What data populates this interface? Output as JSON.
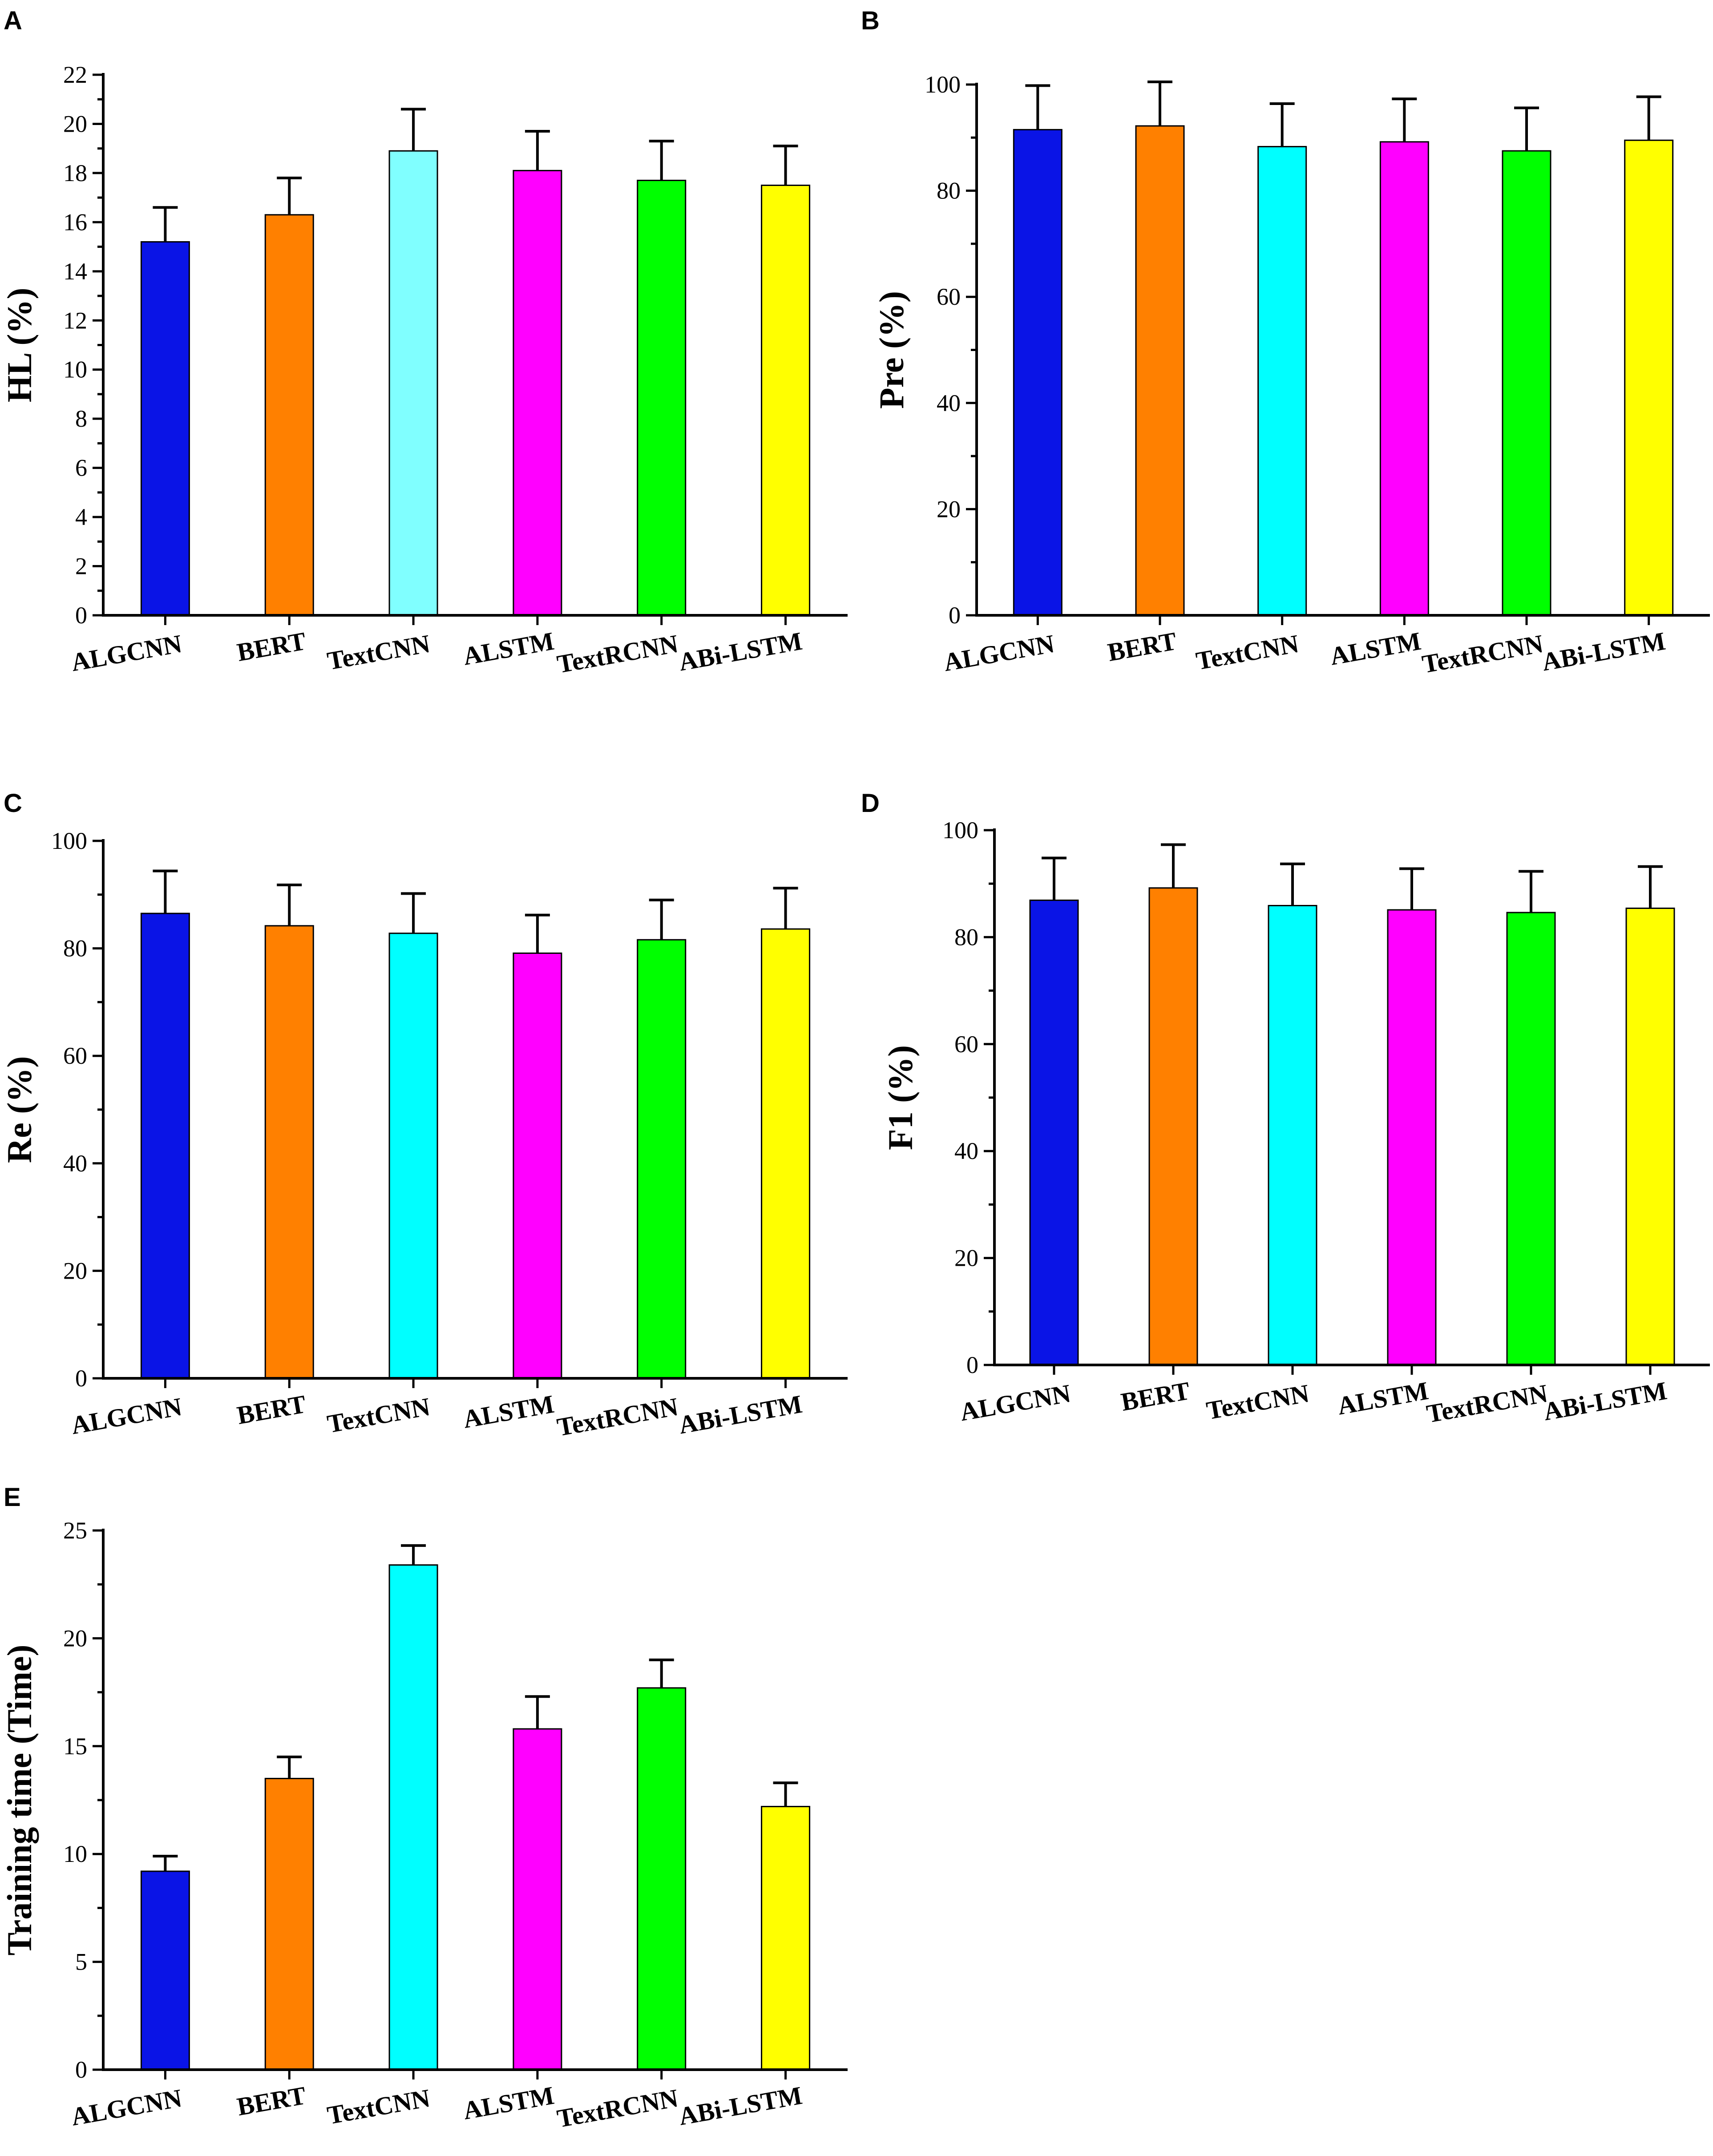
{
  "chart_data": [
    {
      "panel": "A",
      "type": "bar",
      "ylabel": "HL (%)",
      "categories": [
        "ALGCNN",
        "BERT",
        "TextCNN",
        "ALSTM",
        "TextRCNN",
        "ABi-LSTM"
      ],
      "values": [
        15.2,
        16.3,
        18.9,
        18.1,
        17.7,
        17.5
      ],
      "errors": [
        1.4,
        1.5,
        1.7,
        1.6,
        1.6,
        1.6
      ],
      "colors": [
        "#0a14e6",
        "#ff8000",
        "#80ffff",
        "#ff00ff",
        "#00ff00",
        "#ffff00"
      ],
      "ylim": [
        0,
        22
      ],
      "yticks": [
        0,
        2,
        4,
        6,
        8,
        10,
        12,
        14,
        16,
        18,
        20,
        22
      ],
      "yticklabels": [
        "0",
        "2",
        "4",
        "6",
        "8",
        "10",
        "12",
        "14",
        "16",
        "18",
        "20",
        "22"
      ],
      "minor": true
    },
    {
      "panel": "B",
      "type": "bar",
      "ylabel": "Pre (%)",
      "categories": [
        "ALGCNN",
        "BERT",
        "TextCNN",
        "ALSTM",
        "TextRCNN",
        "ABi-LSTM"
      ],
      "values": [
        91.5,
        92.2,
        88.3,
        89.2,
        87.5,
        89.5
      ],
      "errors": [
        8.3,
        8.3,
        8.1,
        8.1,
        8.1,
        8.2
      ],
      "colors": [
        "#0a14e6",
        "#ff8000",
        "#00ffff",
        "#ff00ff",
        "#00ff00",
        "#ffff00"
      ],
      "ylim": [
        0,
        100
      ],
      "yticks": [
        0,
        20,
        40,
        60,
        80,
        100
      ],
      "yticklabels": [
        "0",
        "20",
        "40",
        "60",
        "80",
        "100"
      ],
      "minor": true
    },
    {
      "panel": "C",
      "type": "bar",
      "ylabel": "Re (%)",
      "categories": [
        "ALGCNN",
        "BERT",
        "TextCNN",
        "ALSTM",
        "TextRCNN",
        "ABi-LSTM"
      ],
      "values": [
        86.5,
        84.2,
        82.8,
        79.1,
        81.6,
        83.6
      ],
      "errors": [
        7.9,
        7.6,
        7.4,
        7.1,
        7.4,
        7.6
      ],
      "colors": [
        "#0a14e6",
        "#ff8000",
        "#00ffff",
        "#ff00ff",
        "#00ff00",
        "#ffff00"
      ],
      "ylim": [
        0,
        100
      ],
      "yticks": [
        0,
        20,
        40,
        60,
        80,
        100
      ],
      "yticklabels": [
        "0",
        "20",
        "40",
        "60",
        "80",
        "100"
      ],
      "minor": true
    },
    {
      "panel": "D",
      "type": "bar",
      "ylabel": "F1 (%)",
      "categories": [
        "ALGCNN",
        "BERT",
        "TextCNN",
        "ALSTM",
        "TextRCNN",
        "ABi-LSTM"
      ],
      "values": [
        86.9,
        89.2,
        85.9,
        85.1,
        84.6,
        85.4
      ],
      "errors": [
        7.9,
        8.1,
        7.8,
        7.7,
        7.7,
        7.8
      ],
      "colors": [
        "#0a14e6",
        "#ff8000",
        "#00ffff",
        "#ff00ff",
        "#00ff00",
        "#ffff00"
      ],
      "ylim": [
        0,
        100
      ],
      "yticks": [
        0,
        20,
        40,
        60,
        80,
        100
      ],
      "yticklabels": [
        "0",
        "20",
        "40",
        "60",
        "80",
        "100"
      ],
      "minor": true
    },
    {
      "panel": "E",
      "type": "bar",
      "ylabel": "Training time (Time)",
      "categories": [
        "ALGCNN",
        "BERT",
        "TextCNN",
        "ALSTM",
        "TextRCNN",
        "ABi-LSTM"
      ],
      "values": [
        9.2,
        13.5,
        23.4,
        15.8,
        17.7,
        12.2
      ],
      "errors": [
        0.7,
        1.0,
        0.9,
        1.5,
        1.3,
        1.1
      ],
      "colors": [
        "#0a14e6",
        "#ff8000",
        "#00ffff",
        "#ff00ff",
        "#00ff00",
        "#ffff00"
      ],
      "ylim": [
        0,
        25
      ],
      "yticks": [
        0,
        5,
        10,
        15,
        20,
        25
      ],
      "yticklabels": [
        "0",
        "5",
        "10",
        "15",
        "20",
        "25"
      ],
      "minor": true
    }
  ]
}
